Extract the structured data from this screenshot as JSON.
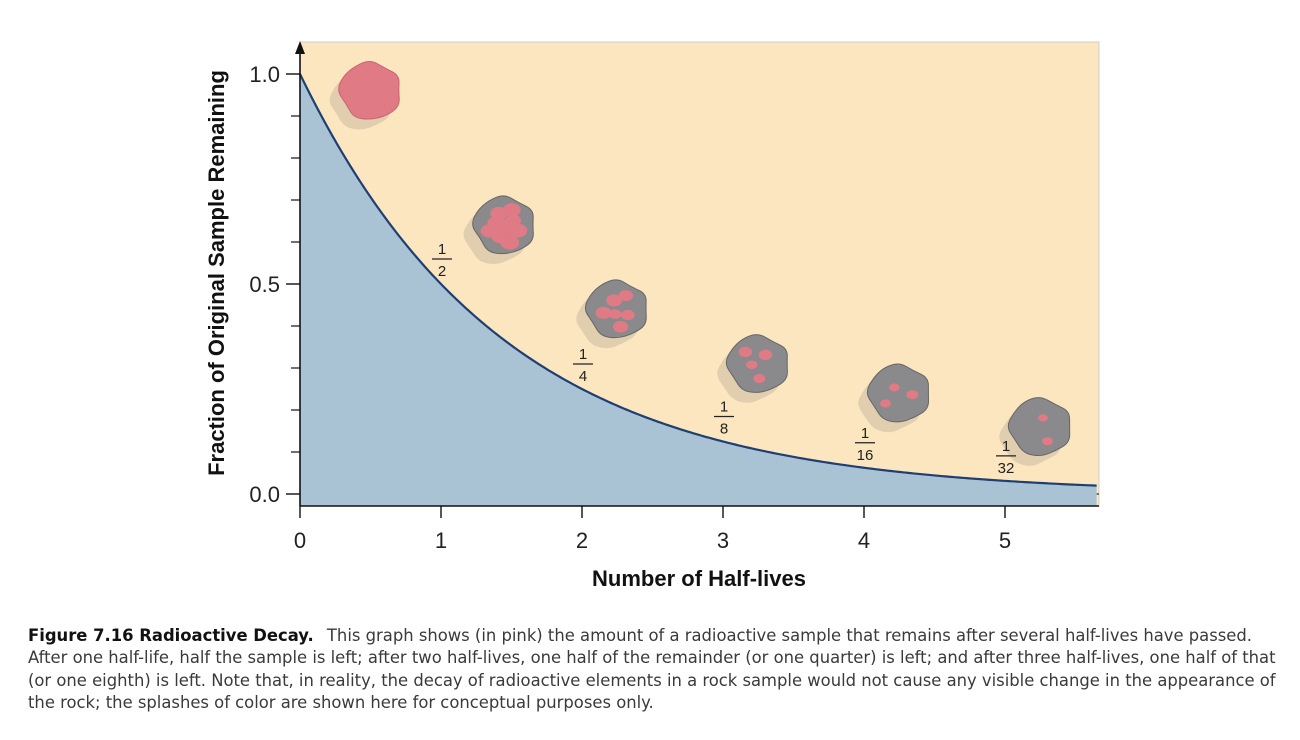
{
  "chart_data": {
    "type": "area",
    "xlabel": "Number of Half-lives",
    "ylabel": "Fraction of Original Sample Remaining",
    "xlim": [
      0,
      5.65
    ],
    "ylim": [
      0,
      1.0
    ],
    "x_ticks": [
      0,
      1,
      2,
      3,
      4,
      5
    ],
    "x_tick_labels": [
      "0",
      "1",
      "2",
      "3",
      "4",
      "5"
    ],
    "y_ticks": [
      0.0,
      0.5,
      1.0
    ],
    "y_tick_labels": [
      "0.0",
      "0.5",
      "1.0"
    ],
    "y_minor_step": 0.1,
    "curve": {
      "function": "y = 0.5^x",
      "x_start": 0,
      "x_end": 5.65
    },
    "points": [
      {
        "x": 1,
        "y": 0.5,
        "label_num": "1",
        "label_den": "2"
      },
      {
        "x": 2,
        "y": 0.25,
        "label_num": "1",
        "label_den": "4"
      },
      {
        "x": 3,
        "y": 0.125,
        "label_num": "1",
        "label_den": "8"
      },
      {
        "x": 4,
        "y": 0.0625,
        "label_num": "1",
        "label_den": "16"
      },
      {
        "x": 5,
        "y": 0.03125,
        "label_num": "1",
        "label_den": "32"
      }
    ],
    "rocks": [
      {
        "x": 0.5,
        "y": 0.96,
        "pink_fraction": 1.0
      },
      {
        "x": 1.45,
        "y": 0.64,
        "pink_fraction": 0.5
      },
      {
        "x": 2.25,
        "y": 0.44,
        "pink_fraction": 0.25
      },
      {
        "x": 3.25,
        "y": 0.31,
        "pink_fraction": 0.125
      },
      {
        "x": 4.25,
        "y": 0.24,
        "pink_fraction": 0.0625
      },
      {
        "x": 5.25,
        "y": 0.16,
        "pink_fraction": 0.03125
      }
    ],
    "colors": {
      "above_curve": "#fbe6c0",
      "below_curve": "#a9c3d4",
      "curve": "#1f3f73",
      "rock_gray": "#8a8a8c",
      "rock_pink": "#e07b86",
      "rock_shadow": "#d8c6aa"
    }
  },
  "caption": {
    "label": "Figure 7.16 Radioactive Decay.",
    "text": "This graph shows (in pink) the amount of a radioactive sample that remains after several half-lives have passed. After one half-life, half the sample is left; after two half-lives, one half of the remainder (or one quarter) is left; and after three half-lives, one half of that (or one eighth) is left. Note that, in reality, the decay of radioactive elements in a rock sample would not cause any visible change in the appearance of the rock; the splashes of color are shown here for conceptual purposes only."
  }
}
